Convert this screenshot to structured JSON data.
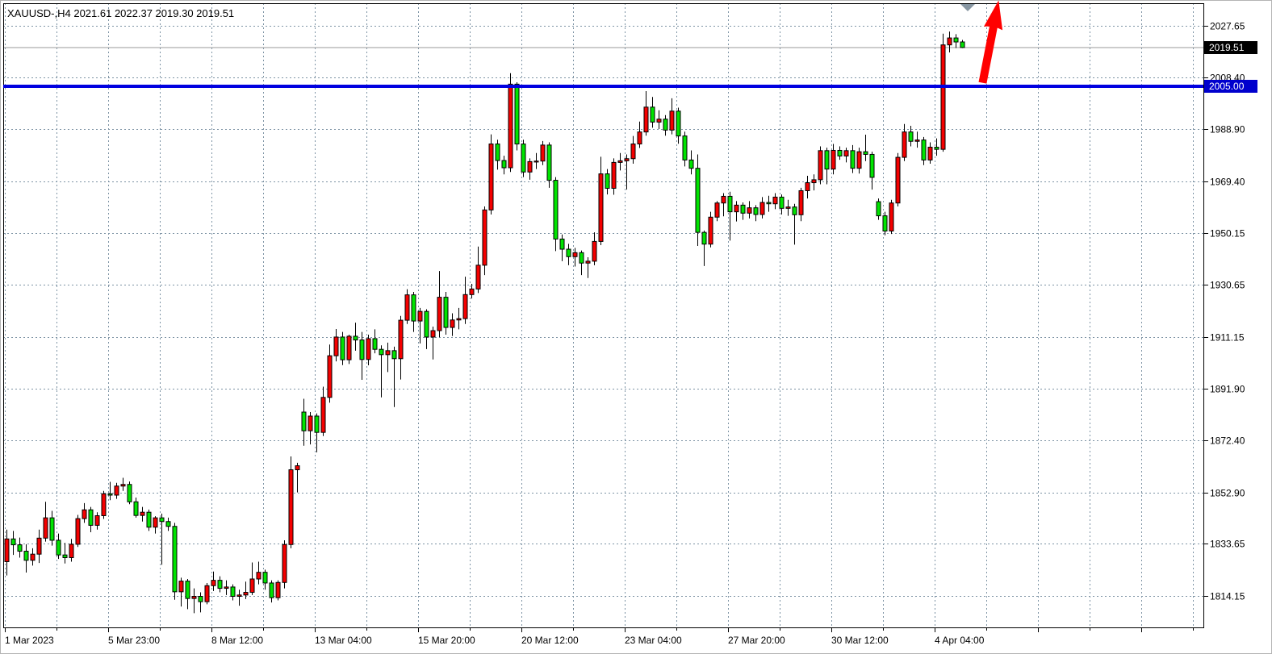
{
  "window": {
    "app": "MetaTrader chart",
    "bg": "#ffffff"
  },
  "header": {
    "text": "XAUUSD-,H4 2021.61 2022.37 2019.30 2019.51",
    "symbol": "XAUUSD-",
    "timeframe": "H4",
    "open": "2021.61",
    "high": "2022.37",
    "low": "2019.30",
    "close": "2019.51"
  },
  "colors": {
    "bull_body": "#f40000",
    "bear_body": "#00e400",
    "candle_border": "#000000",
    "wick": "#000000",
    "grid": "#7d93a4",
    "frame": "#000000",
    "bid_line": "#9a9a9a",
    "bid_tag_bg": "#000000",
    "bid_tag_fg": "#ffffff",
    "hline": "#0000e0",
    "hline_tag_bg": "#0000cd",
    "hline_tag_fg": "#ffffff",
    "arrow": "#ff0000",
    "scroll_marker": "#8796a2",
    "axis_text": "#000000"
  },
  "price_axis": {
    "labels": [
      "2027.65",
      "2008.40",
      "1988.90",
      "1969.40",
      "1950.15",
      "1930.65",
      "1911.15",
      "1891.90",
      "1872.40",
      "1852.90",
      "1833.65",
      "1814.15"
    ],
    "current_price_tag": "2019.51",
    "hline_price_tag": "2005.00"
  },
  "time_axis": {
    "labels": [
      "1 Mar 2023",
      "5 Mar 23:00",
      "8 Mar 12:00",
      "13 Mar 04:00",
      "15 Mar 20:00",
      "20 Mar 12:00",
      "23 Mar 04:00",
      "27 Mar 20:00",
      "30 Mar 12:00",
      "4 Apr 04:00"
    ]
  },
  "chart_data": {
    "type": "candlestick",
    "title": "XAUUSD-,H4",
    "symbol": "XAUUSD-",
    "timeframe": "H4",
    "ylim": [
      1804,
      2032
    ],
    "grid": "dashed",
    "y_gridline_prices": [
      2027.65,
      2008.4,
      1988.9,
      1969.4,
      1950.15,
      1930.65,
      1911.15,
      1891.9,
      1872.4,
      1852.9,
      1833.65,
      1814.15
    ],
    "x_tick_labels": [
      "1 Mar 2023",
      "5 Mar 23:00",
      "8 Mar 12:00",
      "13 Mar 04:00",
      "15 Mar 20:00",
      "20 Mar 12:00",
      "23 Mar 04:00",
      "27 Mar 20:00",
      "30 Mar 12:00",
      "4 Apr 04:00"
    ],
    "current_price": 2019.51,
    "hline_price": 2005.0,
    "last_bar_ohlc": [
      2021.61,
      2022.37,
      2019.3,
      2019.51
    ],
    "candles_format": [
      "open",
      "high",
      "low",
      "close"
    ],
    "candles": [
      [
        1827.0,
        1839.0,
        1821.8,
        1835.5
      ],
      [
        1835.5,
        1838.5,
        1829.5,
        1833.3
      ],
      [
        1833.3,
        1836.0,
        1828.5,
        1830.9
      ],
      [
        1830.9,
        1833.5,
        1822.9,
        1827.5
      ],
      [
        1827.5,
        1832.0,
        1825.5,
        1829.8
      ],
      [
        1829.8,
        1839.0,
        1826.5,
        1835.8
      ],
      [
        1835.8,
        1849.4,
        1834.5,
        1843.4
      ],
      [
        1843.4,
        1846.0,
        1833.0,
        1835.0
      ],
      [
        1835.0,
        1837.5,
        1828.0,
        1829.5
      ],
      [
        1829.5,
        1834.0,
        1826.3,
        1828.5
      ],
      [
        1828.5,
        1835.5,
        1827.0,
        1833.5
      ],
      [
        1833.5,
        1844.5,
        1832.5,
        1843.1
      ],
      [
        1843.1,
        1848.9,
        1841.5,
        1846.4
      ],
      [
        1846.4,
        1847.5,
        1838.0,
        1840.6
      ],
      [
        1840.6,
        1845.5,
        1839.0,
        1844.2
      ],
      [
        1844.2,
        1853.5,
        1843.0,
        1852.4
      ],
      [
        1852.4,
        1856.9,
        1850.0,
        1851.9
      ],
      [
        1851.9,
        1856.5,
        1850.5,
        1855.3
      ],
      [
        1855.3,
        1858.4,
        1853.5,
        1855.9
      ],
      [
        1855.9,
        1857.0,
        1848.5,
        1849.4
      ],
      [
        1849.4,
        1851.0,
        1843.5,
        1844.3
      ],
      [
        1844.3,
        1847.5,
        1842.0,
        1845.5
      ],
      [
        1845.5,
        1846.5,
        1838.5,
        1839.9
      ],
      [
        1839.9,
        1844.0,
        1837.5,
        1843.4
      ],
      [
        1843.4,
        1845.0,
        1825.8,
        1842.0
      ],
      [
        1842.0,
        1843.5,
        1838.5,
        1840.2
      ],
      [
        1840.2,
        1841.5,
        1812.7,
        1815.7
      ],
      [
        1815.7,
        1821.0,
        1810.2,
        1819.7
      ],
      [
        1819.7,
        1820.5,
        1809.2,
        1813.2
      ],
      [
        1813.2,
        1817.0,
        1807.7,
        1814.0
      ],
      [
        1814.0,
        1815.5,
        1808.0,
        1812.0
      ],
      [
        1812.0,
        1819.0,
        1811.0,
        1818.0
      ],
      [
        1818.0,
        1823.3,
        1816.0,
        1820.0
      ],
      [
        1820.0,
        1821.5,
        1815.5,
        1817.0
      ],
      [
        1817.0,
        1820.0,
        1814.5,
        1817.5
      ],
      [
        1817.5,
        1818.5,
        1812.5,
        1814.0
      ],
      [
        1814.0,
        1816.5,
        1810.5,
        1814.5
      ],
      [
        1814.5,
        1819.5,
        1813.0,
        1815.5
      ],
      [
        1815.5,
        1826.7,
        1814.5,
        1820.5
      ],
      [
        1820.5,
        1827.0,
        1818.5,
        1823.0
      ],
      [
        1823.0,
        1824.0,
        1816.5,
        1819.0
      ],
      [
        1819.0,
        1820.0,
        1811.7,
        1813.5
      ],
      [
        1813.5,
        1820.0,
        1812.5,
        1819.2
      ],
      [
        1819.2,
        1835.0,
        1817.0,
        1833.4
      ],
      [
        1833.4,
        1866.4,
        1832.0,
        1861.4
      ],
      [
        1861.4,
        1864.0,
        1852.9,
        1862.9
      ],
      [
        1883.0,
        1888.0,
        1870.4,
        1876.0
      ],
      [
        1876.0,
        1883.0,
        1870.9,
        1881.5
      ],
      [
        1881.5,
        1882.5,
        1867.9,
        1875.4
      ],
      [
        1875.4,
        1892.5,
        1874.0,
        1888.5
      ],
      [
        1888.5,
        1908.3,
        1886.5,
        1904.1
      ],
      [
        1904.1,
        1914.1,
        1902.0,
        1911.1
      ],
      [
        1911.1,
        1913.0,
        1900.6,
        1902.6
      ],
      [
        1902.6,
        1912.0,
        1901.0,
        1911.4
      ],
      [
        1911.4,
        1916.5,
        1906.0,
        1910.0
      ],
      [
        1910.0,
        1913.0,
        1895.1,
        1902.7
      ],
      [
        1902.7,
        1912.0,
        1900.5,
        1910.5
      ],
      [
        1910.5,
        1914.0,
        1905.0,
        1906.5
      ],
      [
        1906.5,
        1908.0,
        1888.5,
        1904.5
      ],
      [
        1904.5,
        1909.0,
        1898.0,
        1906.0
      ],
      [
        1906.0,
        1907.5,
        1884.9,
        1903.0
      ],
      [
        1903.0,
        1919.0,
        1895.2,
        1917.4
      ],
      [
        1917.4,
        1929.0,
        1916.0,
        1926.9
      ],
      [
        1926.9,
        1928.0,
        1913.0,
        1917.1
      ],
      [
        1917.1,
        1922.0,
        1908.7,
        1920.7
      ],
      [
        1920.7,
        1921.5,
        1906.6,
        1911.1
      ],
      [
        1911.1,
        1915.0,
        1902.7,
        1913.5
      ],
      [
        1913.5,
        1935.8,
        1911.0,
        1926.0
      ],
      [
        1926.0,
        1928.0,
        1912.0,
        1914.7
      ],
      [
        1914.7,
        1920.0,
        1911.5,
        1917.5
      ],
      [
        1917.5,
        1922.0,
        1914.0,
        1918.0
      ],
      [
        1918.0,
        1933.7,
        1916.0,
        1927.0
      ],
      [
        1927.0,
        1931.0,
        1925.5,
        1929.1
      ],
      [
        1929.1,
        1945.0,
        1927.6,
        1938.0
      ],
      [
        1938.0,
        1960.0,
        1934.3,
        1958.7
      ],
      [
        1958.7,
        1987.0,
        1957.0,
        1983.4
      ],
      [
        1983.4,
        1985.0,
        1973.8,
        1977.2
      ],
      [
        1977.2,
        1979.0,
        1972.0,
        1974.5
      ],
      [
        1974.5,
        2009.9,
        1972.9,
        2005.8
      ],
      [
        2005.8,
        2006.5,
        1981.0,
        1983.4
      ],
      [
        1983.4,
        1985.0,
        1971.0,
        1972.9
      ],
      [
        1972.9,
        1978.0,
        1970.0,
        1976.8
      ],
      [
        1976.8,
        1980.0,
        1974.0,
        1977.0
      ],
      [
        1977.0,
        1984.5,
        1975.5,
        1983.0
      ],
      [
        1983.0,
        1984.0,
        1967.0,
        1969.8
      ],
      [
        1969.8,
        1971.0,
        1943.3,
        1947.8
      ],
      [
        1947.8,
        1949.5,
        1939.5,
        1944.0
      ],
      [
        1944.0,
        1946.0,
        1938.0,
        1941.2
      ],
      [
        1941.2,
        1944.5,
        1937.5,
        1942.7
      ],
      [
        1942.7,
        1943.5,
        1934.3,
        1938.8
      ],
      [
        1938.8,
        1941.0,
        1933.2,
        1939.5
      ],
      [
        1939.5,
        1950.3,
        1938.0,
        1946.9
      ],
      [
        1946.9,
        1978.6,
        1945.5,
        1972.2
      ],
      [
        1972.2,
        1974.0,
        1964.5,
        1966.8
      ],
      [
        1966.8,
        1978.0,
        1964.4,
        1976.5
      ],
      [
        1976.5,
        1980.0,
        1973.5,
        1977.1
      ],
      [
        1977.1,
        1979.5,
        1966.3,
        1977.9
      ],
      [
        1977.9,
        1986.4,
        1976.0,
        1983.4
      ],
      [
        1983.4,
        1991.8,
        1981.9,
        1987.9
      ],
      [
        1987.9,
        2003.2,
        1986.5,
        1997.2
      ],
      [
        1997.2,
        2001.0,
        1989.5,
        1991.6
      ],
      [
        1991.6,
        1996.0,
        1989.0,
        1992.7
      ],
      [
        1992.7,
        1994.2,
        1986.5,
        1988.6
      ],
      [
        1988.6,
        2000.5,
        1987.0,
        1995.7
      ],
      [
        1995.7,
        1997.0,
        1983.5,
        1986.4
      ],
      [
        1986.4,
        1988.0,
        1975.0,
        1977.4
      ],
      [
        1977.4,
        1981.0,
        1972.0,
        1974.3
      ],
      [
        1974.3,
        1979.5,
        1945.2,
        1950.3
      ],
      [
        1950.3,
        1951.0,
        1937.7,
        1945.9
      ],
      [
        1945.9,
        1958.0,
        1944.7,
        1956.0
      ],
      [
        1956.0,
        1962.0,
        1954.5,
        1961.3
      ],
      [
        1961.3,
        1965.0,
        1956.3,
        1963.8
      ],
      [
        1963.8,
        1965.5,
        1947.2,
        1958.0
      ],
      [
        1958.0,
        1962.0,
        1954.4,
        1960.5
      ],
      [
        1960.5,
        1961.5,
        1955.0,
        1957.5
      ],
      [
        1957.5,
        1962.0,
        1955.5,
        1959.5
      ],
      [
        1959.5,
        1960.5,
        1954.5,
        1957.0
      ],
      [
        1957.0,
        1963.5,
        1955.5,
        1961.5
      ],
      [
        1961.5,
        1964.0,
        1958.0,
        1961.0
      ],
      [
        1961.0,
        1965.0,
        1959.0,
        1963.5
      ],
      [
        1963.5,
        1964.5,
        1957.0,
        1959.3
      ],
      [
        1959.3,
        1962.5,
        1956.5,
        1959.8
      ],
      [
        1959.8,
        1961.0,
        1945.7,
        1956.9
      ],
      [
        1956.9,
        1967.0,
        1954.5,
        1965.9
      ],
      [
        1965.9,
        1971.5,
        1963.0,
        1968.9
      ],
      [
        1968.9,
        1972.0,
        1966.0,
        1970.0
      ],
      [
        1970.0,
        1982.5,
        1968.3,
        1980.9
      ],
      [
        1980.9,
        1982.0,
        1968.3,
        1974.0
      ],
      [
        1974.0,
        1983.4,
        1972.0,
        1981.0
      ],
      [
        1981.0,
        1982.5,
        1977.5,
        1978.9
      ],
      [
        1978.9,
        1982.0,
        1976.5,
        1980.9
      ],
      [
        1980.9,
        1983.0,
        1972.5,
        1974.3
      ],
      [
        1974.3,
        1982.0,
        1972.3,
        1980.5
      ],
      [
        1980.5,
        1986.9,
        1977.0,
        1979.5
      ],
      [
        1979.5,
        1980.5,
        1966.3,
        1970.9
      ],
      [
        1961.8,
        1963.0,
        1955.0,
        1956.5
      ],
      [
        1956.5,
        1958.0,
        1949.2,
        1950.8
      ],
      [
        1950.8,
        1962.5,
        1949.7,
        1961.3
      ],
      [
        1961.3,
        1980.0,
        1960.0,
        1978.4
      ],
      [
        1978.4,
        1990.9,
        1977.0,
        1987.9
      ],
      [
        1987.9,
        1990.2,
        1982.5,
        1984.4
      ],
      [
        1984.4,
        1988.0,
        1982.0,
        1984.9
      ],
      [
        1984.9,
        1986.0,
        1975.5,
        1977.4
      ],
      [
        1977.4,
        1984.0,
        1976.0,
        1982.2
      ],
      [
        1982.2,
        1985.5,
        1979.0,
        1981.4
      ],
      [
        1981.4,
        2024.7,
        1980.5,
        2020.5
      ],
      [
        2020.5,
        2025.5,
        2017.7,
        2023.1
      ],
      [
        2023.1,
        2024.5,
        2019.3,
        2021.6
      ],
      [
        2021.61,
        2022.37,
        2019.3,
        2019.51
      ]
    ]
  }
}
